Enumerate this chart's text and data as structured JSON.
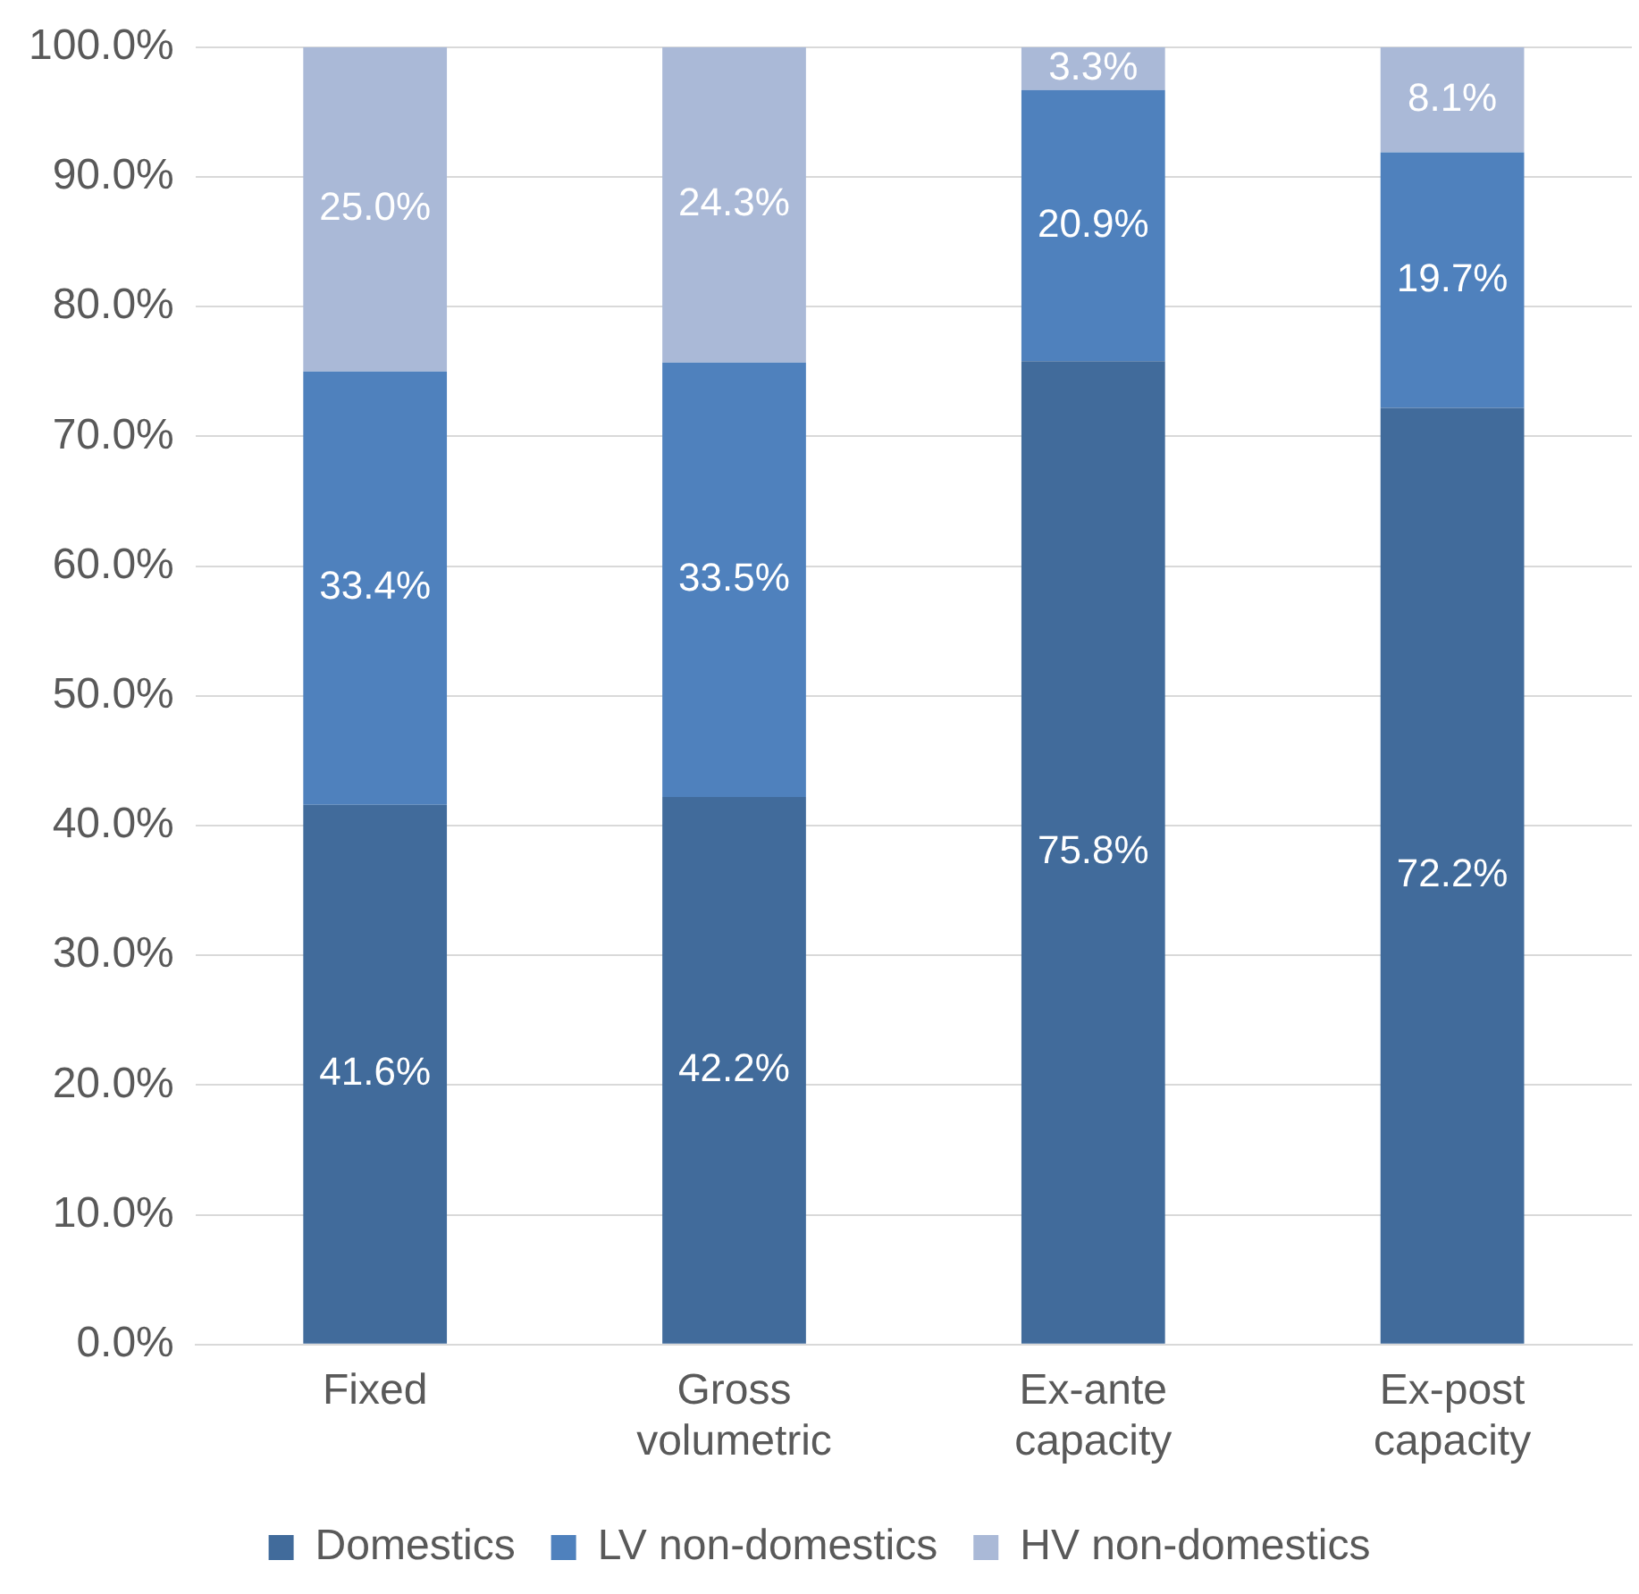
{
  "chart_data": {
    "type": "bar",
    "stacked": true,
    "categories": [
      "Fixed",
      "Gross volumetric",
      "Ex-ante capacity",
      "Ex-post capacity"
    ],
    "series": [
      {
        "name": "Domestics",
        "color": "#416b9b",
        "values": [
          41.6,
          42.2,
          75.8,
          72.2
        ],
        "value_labels": [
          "41.6%",
          "42.2%",
          "75.8%",
          "72.2%"
        ]
      },
      {
        "name": "LV non-domestics",
        "color": "#4f81bd",
        "values": [
          33.4,
          33.5,
          20.9,
          19.7
        ],
        "value_labels": [
          "33.4%",
          "33.5%",
          "20.9%",
          "19.7%"
        ]
      },
      {
        "name": "HV non-domestics",
        "color": "#aab9d7",
        "values": [
          25.0,
          24.3,
          3.3,
          8.1
        ],
        "value_labels": [
          "25.0%",
          "24.3%",
          "3.3%",
          "8.1%"
        ]
      }
    ],
    "ylim": [
      0,
      100
    ],
    "yticks": [
      {
        "value": 0,
        "label": "0.0%"
      },
      {
        "value": 10,
        "label": "10.0%"
      },
      {
        "value": 20,
        "label": "20.0%"
      },
      {
        "value": 30,
        "label": "30.0%"
      },
      {
        "value": 40,
        "label": "40.0%"
      },
      {
        "value": 50,
        "label": "50.0%"
      },
      {
        "value": 60,
        "label": "60.0%"
      },
      {
        "value": 70,
        "label": "70.0%"
      },
      {
        "value": 80,
        "label": "80.0%"
      },
      {
        "value": 90,
        "label": "90.0%"
      },
      {
        "value": 100,
        "label": "100.0%"
      }
    ],
    "grid": "y",
    "legend": "bottom"
  }
}
